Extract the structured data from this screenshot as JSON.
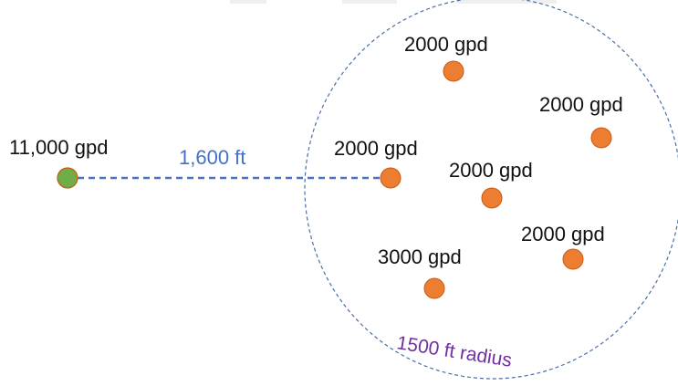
{
  "source_well": {
    "label": "11,000 gpd",
    "color": "#70ad47"
  },
  "distance": {
    "label": "1,600 ft",
    "color": "#4472c4"
  },
  "radius": {
    "label": "1500 ft radius",
    "color": "#7030a0"
  },
  "nearby_wells": [
    {
      "label": "2000 gpd"
    },
    {
      "label": "2000 gpd"
    },
    {
      "label": "2000 gpd"
    },
    {
      "label": "2000 gpd"
    },
    {
      "label": "2000 gpd"
    },
    {
      "label": "3000 gpd"
    }
  ],
  "well_color": "#ed7d31"
}
